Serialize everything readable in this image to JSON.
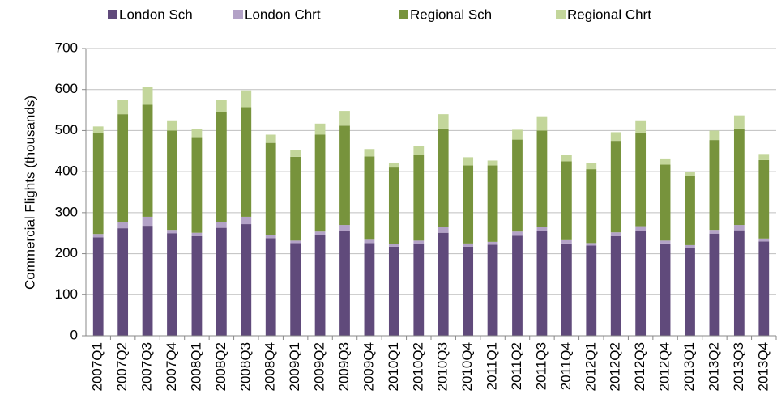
{
  "chart_data": {
    "type": "stacked_bar",
    "y_label": "Commercial Flights (thousands)",
    "categories": [
      "2007Q1",
      "2007Q2",
      "2007Q3",
      "2007Q4",
      "2008Q1",
      "2008Q2",
      "2008Q3",
      "2008Q4",
      "2009Q1",
      "2009Q2",
      "2009Q3",
      "2009Q4",
      "2010Q1",
      "2010Q2",
      "2010Q3",
      "2010Q4",
      "2011Q1",
      "2011Q2",
      "2011Q3",
      "2011Q4",
      "2012Q1",
      "2012Q2",
      "2012Q3",
      "2012Q4",
      "2013Q1",
      "2013Q2",
      "2013Q3",
      "2013Q4"
    ],
    "series": [
      {
        "name": "London Sch",
        "color": "#604a7b",
        "values": [
          240,
          262,
          268,
          250,
          243,
          263,
          272,
          238,
          226,
          246,
          255,
          226,
          217,
          223,
          251,
          217,
          222,
          244,
          255,
          225,
          220,
          243,
          255,
          225,
          214,
          249,
          257,
          230
        ]
      },
      {
        "name": "London Chrt",
        "color": "#b3a2c7",
        "values": [
          8,
          14,
          22,
          8,
          8,
          15,
          18,
          8,
          6,
          8,
          15,
          8,
          6,
          9,
          15,
          8,
          7,
          10,
          11,
          8,
          6,
          9,
          12,
          7,
          7,
          9,
          13,
          7
        ]
      },
      {
        "name": "Regional Sch",
        "color": "#77933c",
        "values": [
          245,
          264,
          273,
          242,
          233,
          267,
          267,
          224,
          204,
          236,
          242,
          203,
          187,
          208,
          239,
          190,
          186,
          224,
          234,
          192,
          180,
          223,
          228,
          185,
          169,
          219,
          235,
          191
        ]
      },
      {
        "name": "Regional Chrt",
        "color": "#c3d69b",
        "values": [
          17,
          35,
          44,
          25,
          19,
          30,
          41,
          20,
          16,
          27,
          36,
          18,
          12,
          23,
          35,
          20,
          12,
          24,
          35,
          15,
          14,
          21,
          30,
          15,
          10,
          23,
          32,
          15
        ]
      }
    ],
    "ylim": [
      0,
      700
    ],
    "yticks": [
      0,
      100,
      200,
      300,
      400,
      500,
      600,
      700
    ],
    "grid": true,
    "legend": "top"
  }
}
